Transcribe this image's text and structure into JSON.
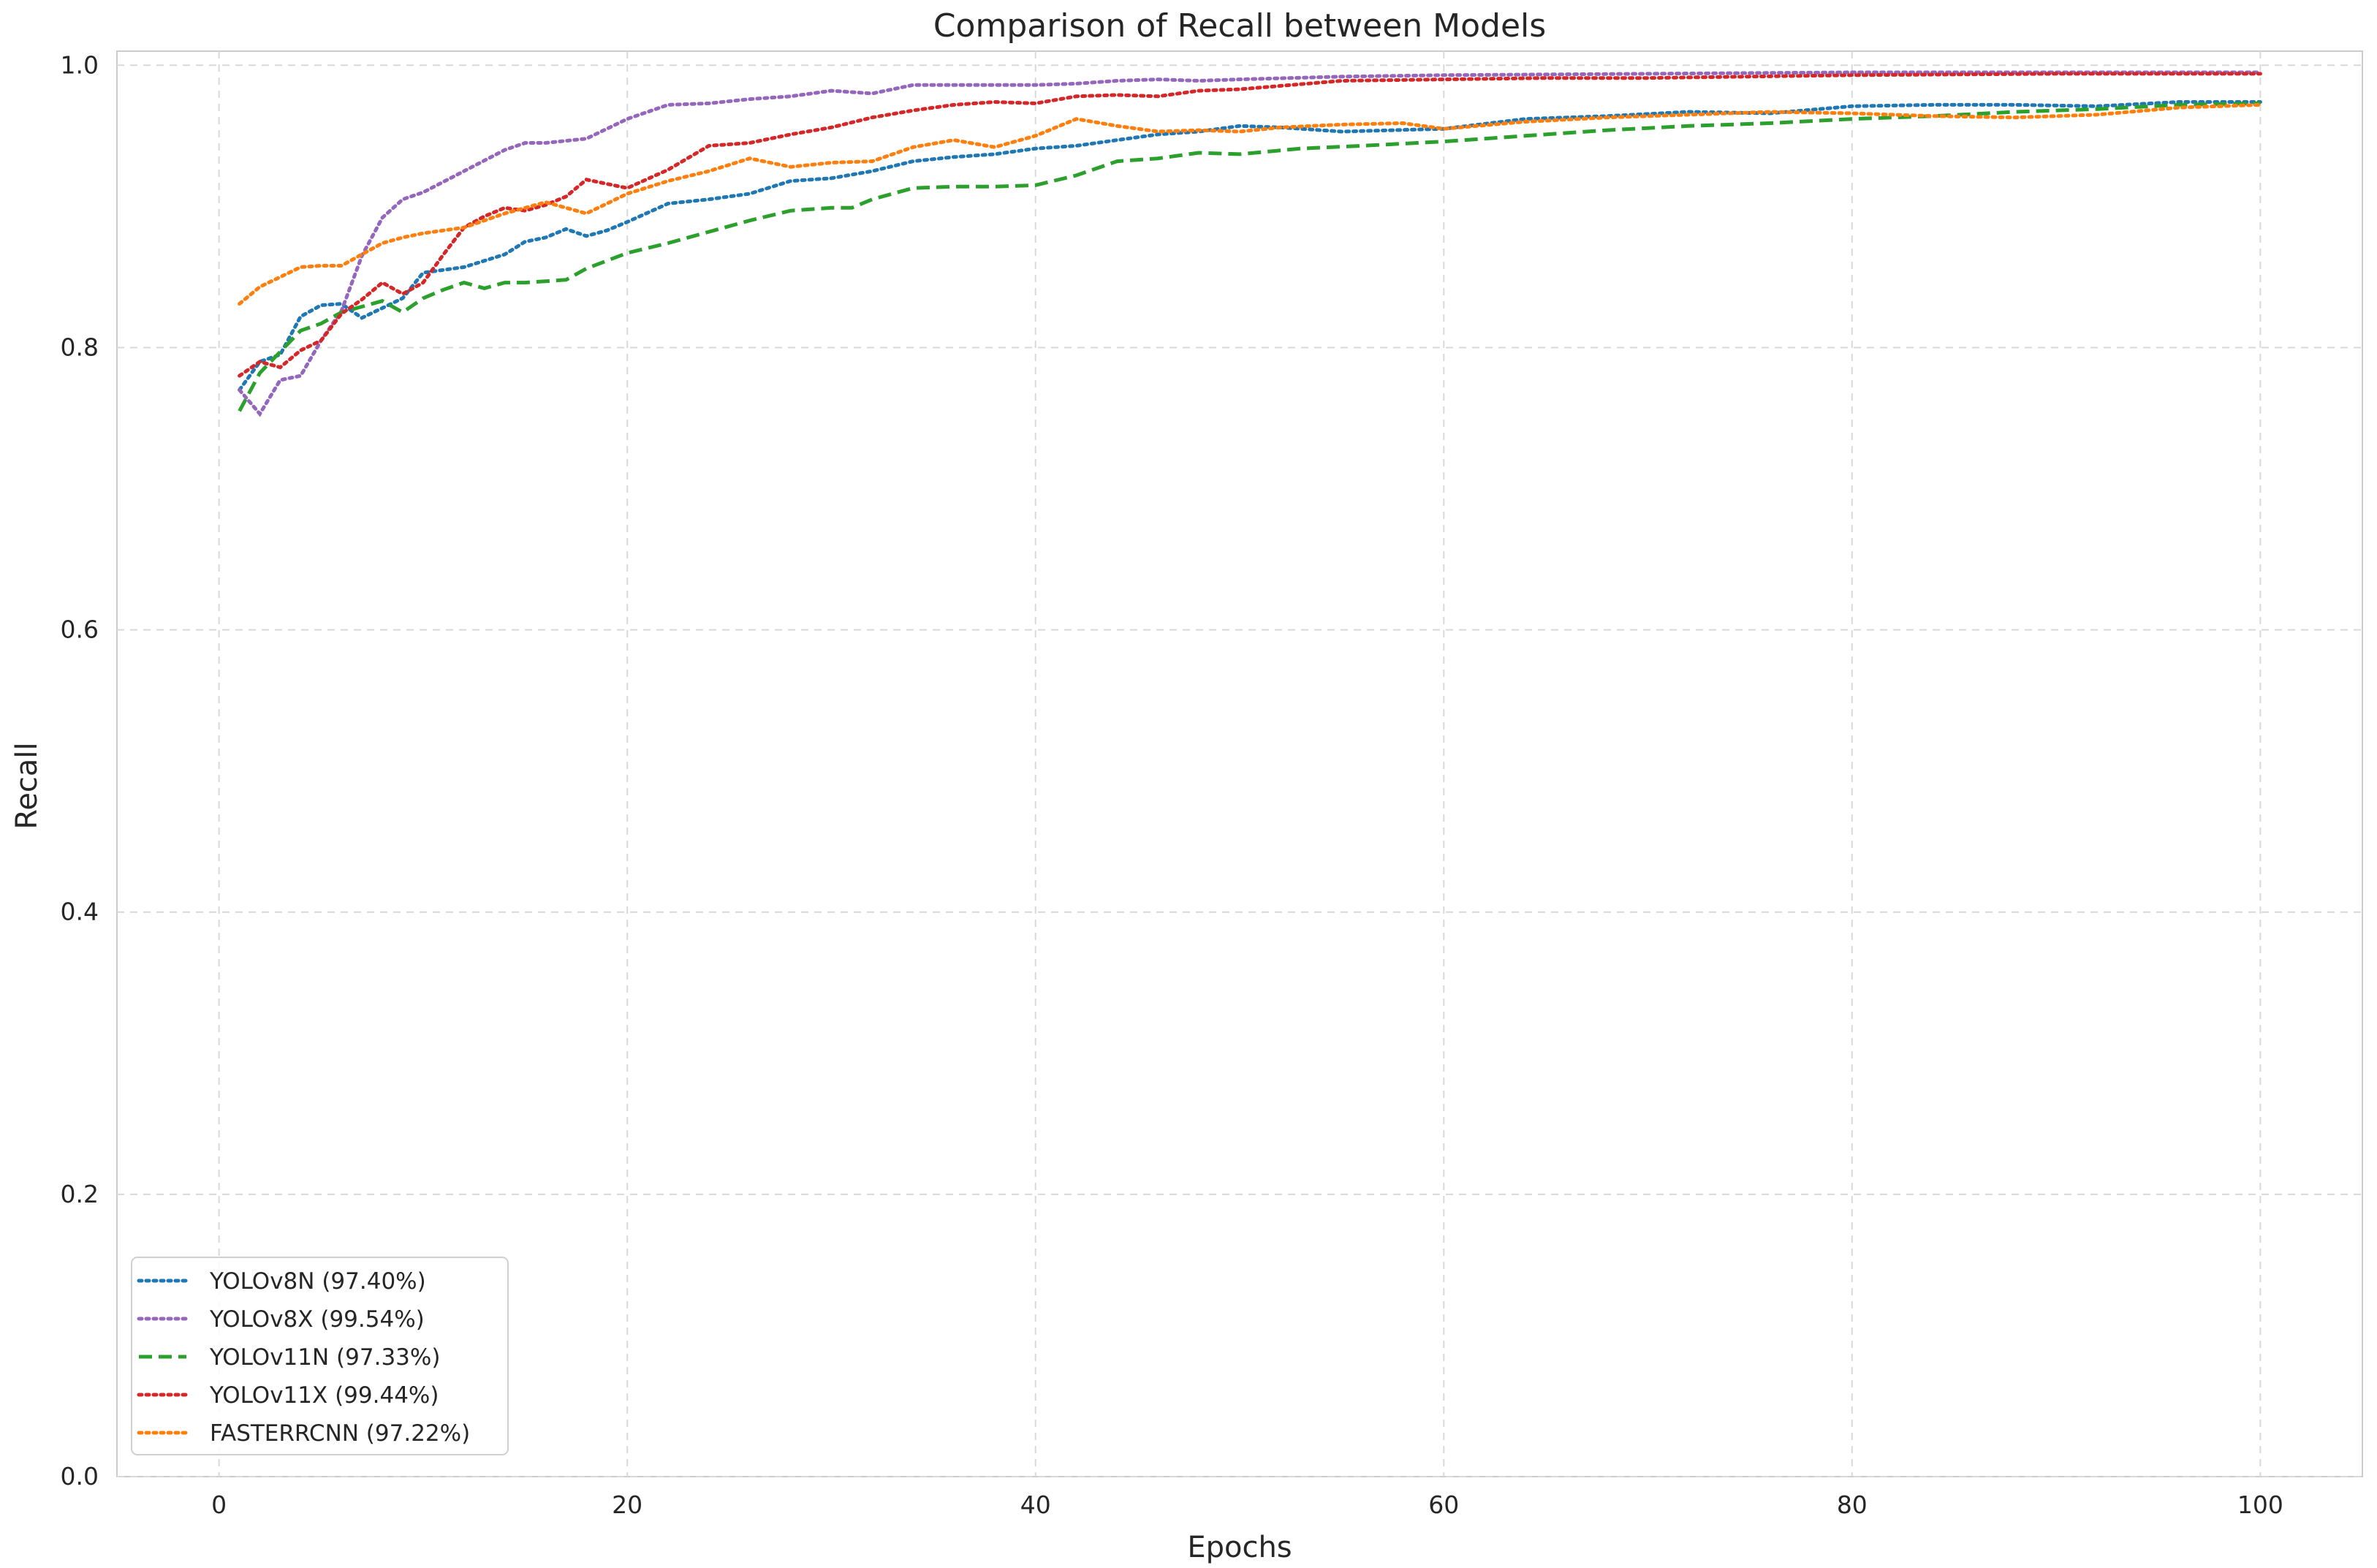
{
  "chart_data": {
    "type": "line",
    "title": "Comparison of Recall between Models",
    "xlabel": "Epochs",
    "ylabel": "Recall",
    "xlim": [
      -5,
      105
    ],
    "ylim": [
      0.0,
      1.01
    ],
    "xticks": [
      0,
      20,
      40,
      60,
      80,
      100
    ],
    "yticks": [
      0.0,
      0.2,
      0.4,
      0.6,
      0.8,
      1.0
    ],
    "xtick_labels": [
      "0",
      "20",
      "40",
      "60",
      "80",
      "100"
    ],
    "ytick_labels": [
      "0.0",
      "0.2",
      "0.4",
      "0.6",
      "0.8",
      "1.0"
    ],
    "grid": true,
    "legend_position": "lower-left",
    "series": [
      {
        "name": "YOLOv8N (97.40%)",
        "color": "#1f77b4",
        "linestyle": "dotted",
        "x": [
          1,
          2,
          3,
          4,
          5,
          6,
          7,
          8,
          9,
          10,
          12,
          14,
          15,
          16,
          17,
          18,
          19,
          20,
          22,
          24,
          26,
          28,
          30,
          32,
          34,
          36,
          38,
          40,
          42,
          44,
          46,
          48,
          50,
          52,
          55,
          60,
          64,
          68,
          72,
          76,
          80,
          84,
          88,
          92,
          96,
          100
        ],
        "y": [
          0.77,
          0.79,
          0.795,
          0.822,
          0.83,
          0.831,
          0.821,
          0.828,
          0.835,
          0.853,
          0.857,
          0.866,
          0.875,
          0.878,
          0.884,
          0.879,
          0.883,
          0.889,
          0.902,
          0.905,
          0.909,
          0.918,
          0.92,
          0.925,
          0.932,
          0.935,
          0.937,
          0.941,
          0.943,
          0.947,
          0.951,
          0.953,
          0.957,
          0.956,
          0.953,
          0.955,
          0.962,
          0.964,
          0.967,
          0.966,
          0.971,
          0.972,
          0.972,
          0.971,
          0.974,
          0.974
        ]
      },
      {
        "name": "YOLOv8X (99.54%)",
        "color": "#9467bd",
        "linestyle": "dotted",
        "x": [
          1,
          2,
          3,
          4,
          5,
          6,
          7,
          8,
          9,
          10,
          12,
          14,
          15,
          16,
          18,
          20,
          22,
          24,
          26,
          28,
          30,
          32,
          34,
          36,
          38,
          40,
          42,
          44,
          46,
          48,
          50,
          55,
          60,
          70,
          80,
          90,
          100
        ],
        "y": [
          0.77,
          0.753,
          0.777,
          0.78,
          0.805,
          0.826,
          0.865,
          0.892,
          0.905,
          0.91,
          0.925,
          0.94,
          0.945,
          0.945,
          0.948,
          0.962,
          0.972,
          0.973,
          0.976,
          0.978,
          0.982,
          0.98,
          0.986,
          0.986,
          0.986,
          0.986,
          0.987,
          0.989,
          0.99,
          0.989,
          0.99,
          0.992,
          0.993,
          0.994,
          0.995,
          0.995,
          0.995
        ]
      },
      {
        "name": "YOLOv11N (97.33%)",
        "color": "#2ca02c",
        "linestyle": "dashed",
        "x": [
          1,
          2,
          3,
          4,
          5,
          6,
          7,
          8,
          9,
          10,
          11,
          12,
          13,
          14,
          15,
          16,
          17,
          18,
          20,
          22,
          24,
          26,
          28,
          30,
          31,
          32,
          34,
          36,
          38,
          40,
          42,
          44,
          46,
          48,
          50,
          53,
          56,
          60,
          64,
          68,
          72,
          76,
          80,
          84,
          88,
          92,
          96,
          100
        ],
        "y": [
          0.755,
          0.782,
          0.797,
          0.812,
          0.817,
          0.825,
          0.829,
          0.833,
          0.825,
          0.835,
          0.841,
          0.846,
          0.842,
          0.846,
          0.846,
          0.847,
          0.848,
          0.856,
          0.867,
          0.874,
          0.882,
          0.89,
          0.897,
          0.899,
          0.899,
          0.905,
          0.913,
          0.914,
          0.914,
          0.915,
          0.922,
          0.932,
          0.934,
          0.938,
          0.937,
          0.941,
          0.943,
          0.946,
          0.95,
          0.954,
          0.957,
          0.959,
          0.962,
          0.964,
          0.967,
          0.969,
          0.972,
          0.973
        ]
      },
      {
        "name": "YOLOv11X (99.44%)",
        "color": "#d62728",
        "linestyle": "dotted",
        "x": [
          1,
          2,
          3,
          4,
          5,
          6,
          7,
          8,
          9,
          10,
          11,
          12,
          13,
          14,
          15,
          16,
          17,
          18,
          19,
          20,
          22,
          24,
          26,
          28,
          30,
          32,
          34,
          36,
          38,
          40,
          42,
          44,
          46,
          48,
          50,
          55,
          60,
          65,
          70,
          80,
          90,
          100
        ],
        "y": [
          0.78,
          0.79,
          0.786,
          0.798,
          0.805,
          0.824,
          0.834,
          0.846,
          0.838,
          0.846,
          0.866,
          0.885,
          0.893,
          0.899,
          0.897,
          0.901,
          0.907,
          0.919,
          0.916,
          0.913,
          0.926,
          0.943,
          0.945,
          0.951,
          0.956,
          0.963,
          0.968,
          0.972,
          0.974,
          0.973,
          0.978,
          0.979,
          0.978,
          0.982,
          0.983,
          0.989,
          0.99,
          0.991,
          0.991,
          0.993,
          0.994,
          0.994
        ]
      },
      {
        "name": "FASTERRCNN (97.22%)",
        "color": "#ff7f0e",
        "linestyle": "dotted",
        "x": [
          1,
          2,
          3,
          4,
          5,
          6,
          7,
          8,
          9,
          10,
          12,
          14,
          16,
          18,
          20,
          22,
          24,
          26,
          28,
          30,
          32,
          34,
          36,
          38,
          40,
          42,
          44,
          46,
          48,
          50,
          52,
          55,
          58,
          60,
          64,
          68,
          72,
          76,
          80,
          84,
          88,
          92,
          96,
          100
        ],
        "y": [
          0.831,
          0.843,
          0.85,
          0.857,
          0.858,
          0.858,
          0.866,
          0.874,
          0.878,
          0.881,
          0.885,
          0.895,
          0.903,
          0.895,
          0.909,
          0.918,
          0.925,
          0.934,
          0.928,
          0.931,
          0.932,
          0.942,
          0.947,
          0.942,
          0.95,
          0.962,
          0.957,
          0.953,
          0.954,
          0.953,
          0.956,
          0.958,
          0.959,
          0.955,
          0.96,
          0.963,
          0.965,
          0.967,
          0.966,
          0.964,
          0.963,
          0.965,
          0.97,
          0.972
        ]
      }
    ]
  }
}
